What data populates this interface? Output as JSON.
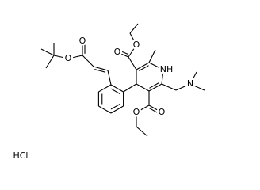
{
  "atom_labels": [
    "O",
    "O",
    "O",
    "O",
    "O",
    "O",
    "NH",
    "N"
  ],
  "salt": "HCl"
}
